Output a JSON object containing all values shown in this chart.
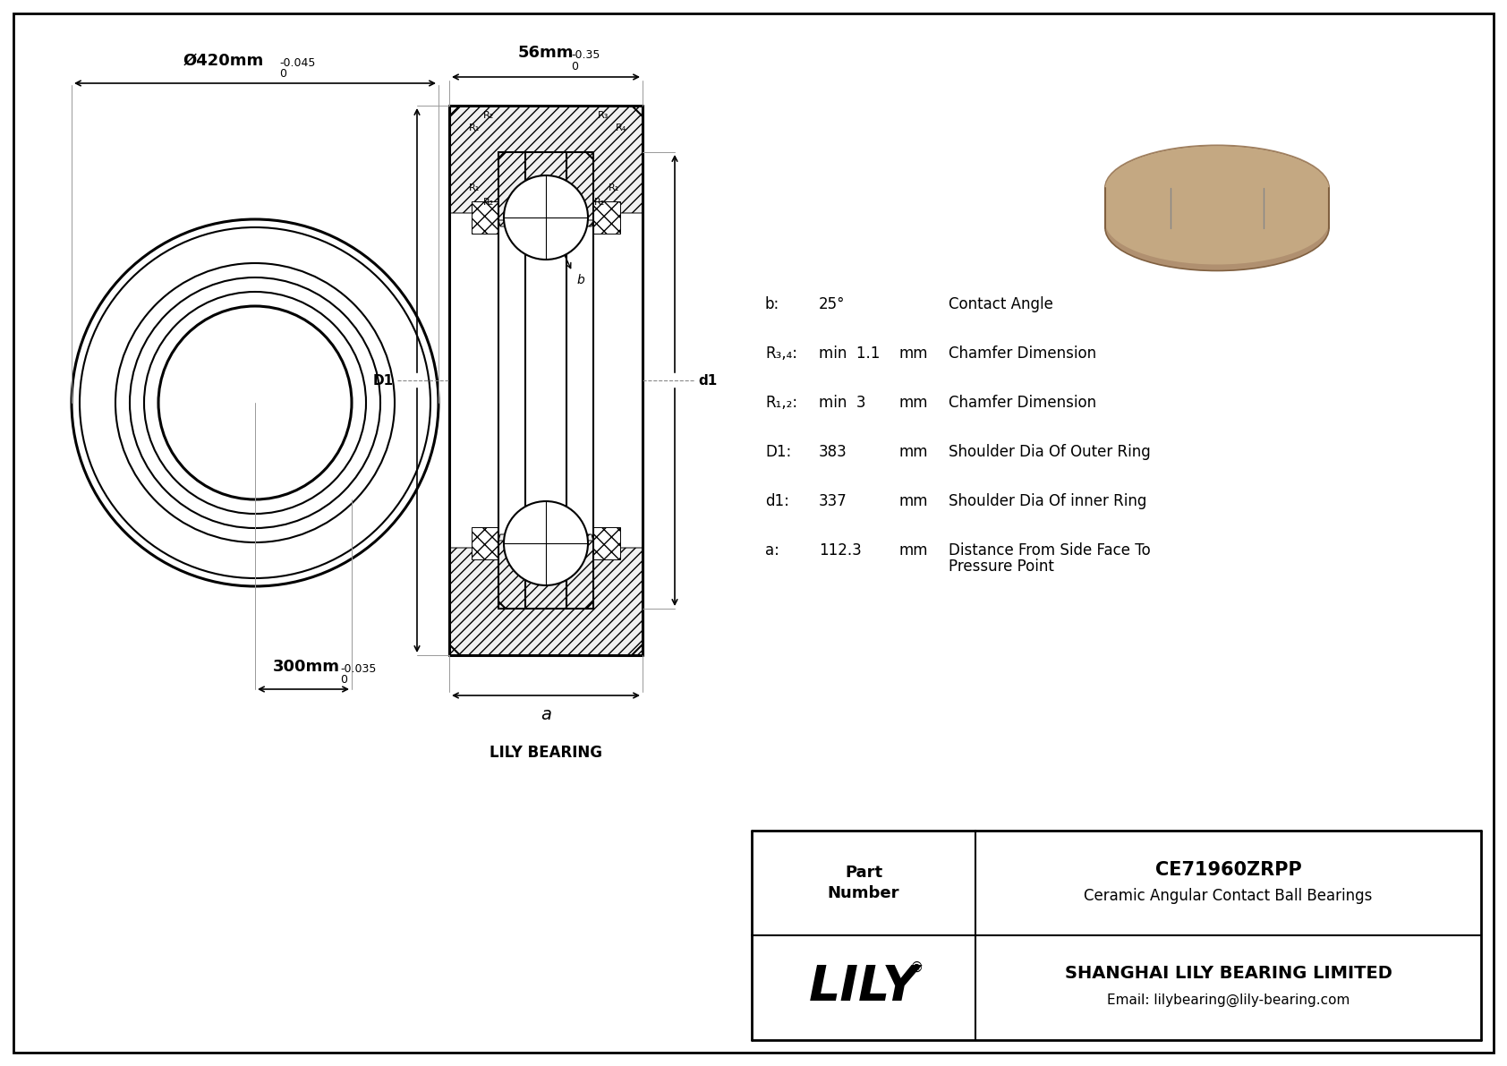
{
  "bg_color": "#ffffff",
  "line_color": "#000000",
  "company": "SHANGHAI LILY BEARING LIMITED",
  "email": "Email: lilybearing@lily-bearing.com",
  "title": "CE71960ZRPP",
  "subtitle": "Ceramic Angular Contact Ball Bearings",
  "logo_text": "LILY",
  "dim_outer_label": "Ø420mm",
  "dim_outer_upper": "0",
  "dim_outer_lower": "-0.045",
  "dim_inner_label": "300mm",
  "dim_inner_upper": "0",
  "dim_inner_lower": "-0.035",
  "dim_width_label": "56mm",
  "dim_width_upper": "0",
  "dim_width_lower": "-0.35",
  "lily_bearing": "LILY BEARING",
  "params": [
    {
      "sym": "b:",
      "val": "25°",
      "unit": "",
      "desc1": "Contact Angle",
      "desc2": ""
    },
    {
      "sym": "R₃,₄:",
      "val": "min  1.1",
      "unit": "mm",
      "desc1": "Chamfer Dimension",
      "desc2": ""
    },
    {
      "sym": "R₁,₂:",
      "val": "min  3",
      "unit": "mm",
      "desc1": "Chamfer Dimension",
      "desc2": ""
    },
    {
      "sym": "D1:",
      "val": "383",
      "unit": "mm",
      "desc1": "Shoulder Dia Of Outer Ring",
      "desc2": ""
    },
    {
      "sym": "d1:",
      "val": "337",
      "unit": "mm",
      "desc1": "Shoulder Dia Of inner Ring",
      "desc2": ""
    },
    {
      "sym": "a:",
      "val": "112.3",
      "unit": "mm",
      "desc1": "Distance From Side Face To",
      "desc2": "Pressure Point"
    }
  ]
}
